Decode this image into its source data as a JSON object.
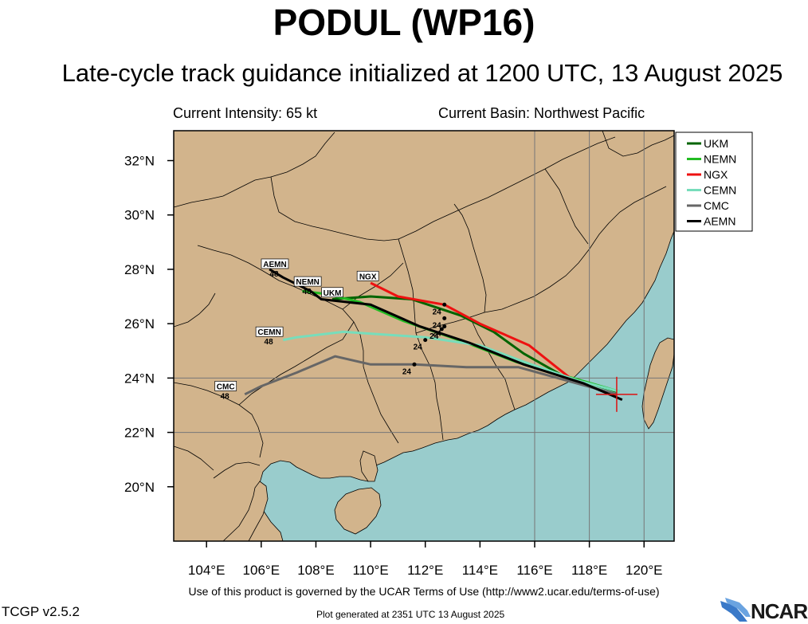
{
  "header": {
    "title": "PODUL (WP16)",
    "subtitle": "Late-cycle track guidance initialized at 1200 UTC, 13 August 2025",
    "intensity": "Current Intensity: 65 kt",
    "basin": "Current Basin: Northwest Pacific"
  },
  "footer": {
    "terms": "Use of this product is governed by the UCAR Terms of Use (http://www2.ucar.edu/terms-of-use)",
    "version": "TCGP v2.5.2",
    "generated": "Plot generated at 2351 UTC   13 August 2025",
    "logo_text": "NCAR"
  },
  "colors": {
    "land": "#d2b48c",
    "ocean": "#99cccc",
    "border": "#000000"
  },
  "chart_data": {
    "type": "line",
    "xlim": [
      102.8,
      121.1
    ],
    "ylim": [
      18.0,
      33.1
    ],
    "x_ticks": [
      104,
      106,
      108,
      110,
      112,
      114,
      116,
      118,
      120
    ],
    "x_tick_labels": [
      "104°E",
      "106°E",
      "108°E",
      "110°E",
      "112°E",
      "114°E",
      "116°E",
      "118°E",
      "120°E"
    ],
    "y_ticks": [
      20,
      22,
      24,
      26,
      28,
      30,
      32
    ],
    "y_tick_labels": [
      "20°N",
      "22°N",
      "24°N",
      "26°N",
      "28°N",
      "30°N",
      "32°N"
    ],
    "grid_x": [
      116,
      118,
      120
    ],
    "grid_y": [
      22,
      24
    ],
    "legend_position": "right-top",
    "current_position": {
      "lon": 119.0,
      "lat": 23.4
    },
    "series": [
      {
        "name": "UKM",
        "color": "#006400",
        "lon": [
          119.0,
          117.0,
          115.6,
          114.5,
          113.3,
          111.5,
          110.0,
          108.6
        ],
        "lat": [
          23.5,
          24.1,
          24.9,
          25.7,
          26.3,
          26.9,
          27.0,
          26.9
        ],
        "label": "UKM",
        "marks": [
          {
            "lon": 112.7,
            "lat": 26.2,
            "h": "24"
          }
        ]
      },
      {
        "name": "NEMN",
        "color": "#22bb22",
        "lon": [
          119.1,
          117.4,
          115.3,
          113.5,
          111.2,
          109.6,
          108.3,
          107.5
        ],
        "lat": [
          23.5,
          24.0,
          24.6,
          25.3,
          26.1,
          26.8,
          27.1,
          27.2
        ],
        "label": "NEMN",
        "marks": [
          {
            "lon": 112.6,
            "lat": 25.8,
            "h": "24"
          }
        ]
      },
      {
        "name": "NGX",
        "color": "#ee1111",
        "lon": [
          119.0,
          117.3,
          115.8,
          114.0,
          112.7,
          111.0,
          110.0
        ],
        "lat": [
          23.3,
          24.0,
          25.2,
          26.0,
          26.7,
          27.0,
          27.5
        ],
        "label": "NGX",
        "marks": [
          {
            "lon": 112.7,
            "lat": 26.7,
            "h": "24"
          }
        ]
      },
      {
        "name": "CEMN",
        "color": "#77ddbb",
        "lon": [
          119.1,
          117.6,
          115.6,
          114.0,
          112.0,
          109.0,
          107.3,
          106.8
        ],
        "lat": [
          23.5,
          23.9,
          24.6,
          25.2,
          25.5,
          25.7,
          25.5,
          25.4
        ],
        "label": "CEMN",
        "marks": [
          {
            "lon": 112.0,
            "lat": 25.4,
            "h": "24"
          }
        ]
      },
      {
        "name": "CMC",
        "color": "#666666",
        "lon": [
          119.0,
          117.2,
          115.4,
          113.5,
          111.6,
          110.0,
          108.7,
          107.3,
          106.0,
          105.4
        ],
        "lat": [
          23.4,
          23.9,
          24.4,
          24.4,
          24.5,
          24.5,
          24.8,
          24.2,
          23.7,
          23.4
        ],
        "label": "CMC",
        "marks": [
          {
            "lon": 111.6,
            "lat": 24.5,
            "h": "24"
          }
        ]
      },
      {
        "name": "AEMN",
        "color": "#000000",
        "lon": [
          119.2,
          117.8,
          115.6,
          113.6,
          111.8,
          110.0,
          108.2,
          107.8,
          106.8,
          106.3
        ],
        "lat": [
          23.2,
          23.8,
          24.5,
          25.3,
          25.9,
          26.7,
          26.9,
          27.2,
          27.7,
          28.0
        ],
        "label": "AEMN",
        "marks": [
          {
            "lon": 112.7,
            "lat": 25.9,
            "h": "24"
          }
        ]
      }
    ],
    "labels": [
      {
        "text": "AEMN",
        "lon": 106.5,
        "lat": 28.0,
        "hour": "48"
      },
      {
        "text": "NEMN",
        "lon": 107.7,
        "lat": 27.35,
        "hour": "48"
      },
      {
        "text": "UKM",
        "lon": 108.6,
        "lat": 26.95,
        "hour": ""
      },
      {
        "text": "NGX",
        "lon": 109.9,
        "lat": 27.55,
        "hour": ""
      },
      {
        "text": "CEMN",
        "lon": 106.3,
        "lat": 25.5,
        "hour": "48"
      },
      {
        "text": "CMC",
        "lon": 104.7,
        "lat": 23.5,
        "hour": "48"
      }
    ]
  }
}
